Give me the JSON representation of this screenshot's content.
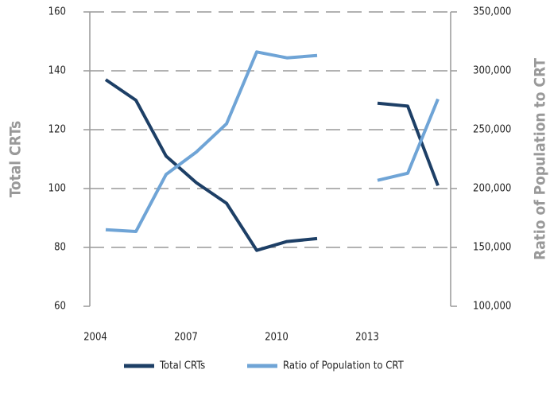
{
  "chart_data": {
    "type": "line",
    "categories": [
      "2004",
      null,
      null,
      "2007",
      null,
      null,
      "2010",
      null,
      null,
      "2013",
      null,
      null
    ],
    "series": [
      {
        "name": "Total CRTs",
        "color": "#1d3f66",
        "values": [
          137,
          130,
          111,
          102,
          95,
          79,
          82,
          83,
          null,
          129,
          128,
          101
        ]
      },
      {
        "name": "Ratio of Population to CRT",
        "color": "#6fa4d6",
        "axis": "y2",
        "values": [
          165000,
          163500,
          212000,
          231000,
          255000,
          316000,
          311000,
          313000,
          null,
          207000,
          213000,
          276000
        ]
      }
    ],
    "ylabel": "Total CRTs",
    "y2label": "Ratio of Population to CRT",
    "ylim": [
      60,
      160
    ],
    "yticks": [
      60,
      80,
      100,
      120,
      140,
      160
    ],
    "y2lim": [
      100000,
      350000
    ],
    "y2ticks": [
      {
        "value": 100000,
        "label": "100,000"
      },
      {
        "value": 150000,
        "label": "150,000"
      },
      {
        "value": 200000,
        "label": "200,000"
      },
      {
        "value": 250000,
        "label": "250,000"
      },
      {
        "value": 300000,
        "label": "300,000"
      },
      {
        "value": 350000,
        "label": "350,000"
      }
    ],
    "grid": true,
    "legend": "bottom"
  }
}
